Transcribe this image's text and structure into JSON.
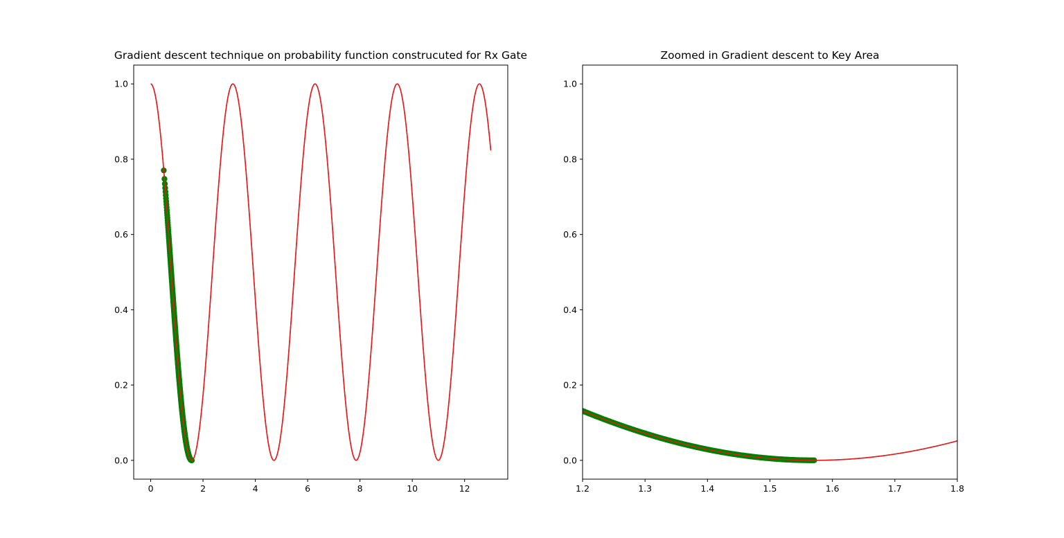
{
  "chart_data": [
    {
      "type": "line",
      "title": "Gradient descent technique on probability function construcuted for Rx Gate",
      "xlabel": "",
      "ylabel": "",
      "xlim": [
        -0.65,
        13.65
      ],
      "ylim": [
        -0.05,
        1.05
      ],
      "xticks": [
        0,
        2,
        4,
        6,
        8,
        10,
        12
      ],
      "xtick_labels": [
        "0",
        "2",
        "4",
        "6",
        "8",
        "10",
        "12"
      ],
      "yticks": [
        0.0,
        0.2,
        0.4,
        0.6,
        0.8,
        1.0
      ],
      "ytick_labels": [
        "0.0",
        "0.2",
        "0.4",
        "0.6",
        "0.8",
        "1.0"
      ],
      "grid": false,
      "series": [
        {
          "kind": "line",
          "color": "#e41a1c",
          "function": "cos^2(x)",
          "x_range": [
            0,
            13
          ]
        },
        {
          "kind": "scatter",
          "color": "#008000",
          "function": "cos^2(x)",
          "x_range": [
            0.5,
            1.5708
          ]
        }
      ]
    },
    {
      "type": "line",
      "title": "Zoomed in Gradient descent to Key Area",
      "xlabel": "",
      "ylabel": "",
      "xlim": [
        1.2,
        1.8
      ],
      "ylim": [
        -0.05,
        1.05
      ],
      "xticks": [
        1.2,
        1.3,
        1.4,
        1.5,
        1.6,
        1.7,
        1.8
      ],
      "xtick_labels": [
        "1.2",
        "1.3",
        "1.4",
        "1.5",
        "1.6",
        "1.7",
        "1.8"
      ],
      "yticks": [
        0.0,
        0.2,
        0.4,
        0.6,
        0.8,
        1.0
      ],
      "ytick_labels": [
        "0.0",
        "0.2",
        "0.4",
        "0.6",
        "0.8",
        "1.0"
      ],
      "grid": false,
      "series": [
        {
          "kind": "line",
          "color": "#e41a1c",
          "function": "cos^2(x)",
          "x_range": [
            0,
            13
          ]
        },
        {
          "kind": "scatter",
          "color": "#008000",
          "function": "cos^2(x)",
          "x_range": [
            0.5,
            1.5708
          ]
        }
      ]
    }
  ]
}
